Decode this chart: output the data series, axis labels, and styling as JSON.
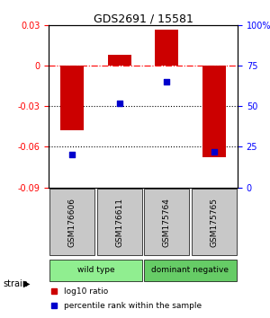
{
  "title": "GDS2691 / 15581",
  "samples": [
    "GSM176606",
    "GSM176611",
    "GSM175764",
    "GSM175765"
  ],
  "log10_ratio": [
    -0.048,
    0.008,
    0.027,
    -0.068
  ],
  "percentile_rank": [
    20,
    52,
    65,
    22
  ],
  "groups": [
    {
      "label": "wild type",
      "color": "#90EE90",
      "samples": [
        0,
        1
      ]
    },
    {
      "label": "dominant negative",
      "color": "#66CC66",
      "samples": [
        2,
        3
      ]
    }
  ],
  "group_row_label": "strain",
  "ylim_left": [
    -0.09,
    0.03
  ],
  "ylim_right": [
    0,
    100
  ],
  "yticks_left": [
    -0.09,
    -0.06,
    -0.03,
    0,
    0.03
  ],
  "yticks_right": [
    0,
    25,
    50,
    75,
    100
  ],
  "ytick_labels_left": [
    "-0.09",
    "-0.06",
    "-0.03",
    "0",
    "0.03"
  ],
  "ytick_labels_right": [
    "0",
    "25",
    "50",
    "75",
    "100%"
  ],
  "hline_dotted": [
    -0.03,
    -0.06
  ],
  "hline_dashdot": 0,
  "bar_color": "#CC0000",
  "dot_color": "#0000CC",
  "legend_bar_label": "log10 ratio",
  "legend_dot_label": "percentile rank within the sample",
  "bg_color": "#FFFFFF",
  "plot_bg_color": "#FFFFFF",
  "sample_box_color": "#C8C8C8",
  "bar_width": 0.5
}
